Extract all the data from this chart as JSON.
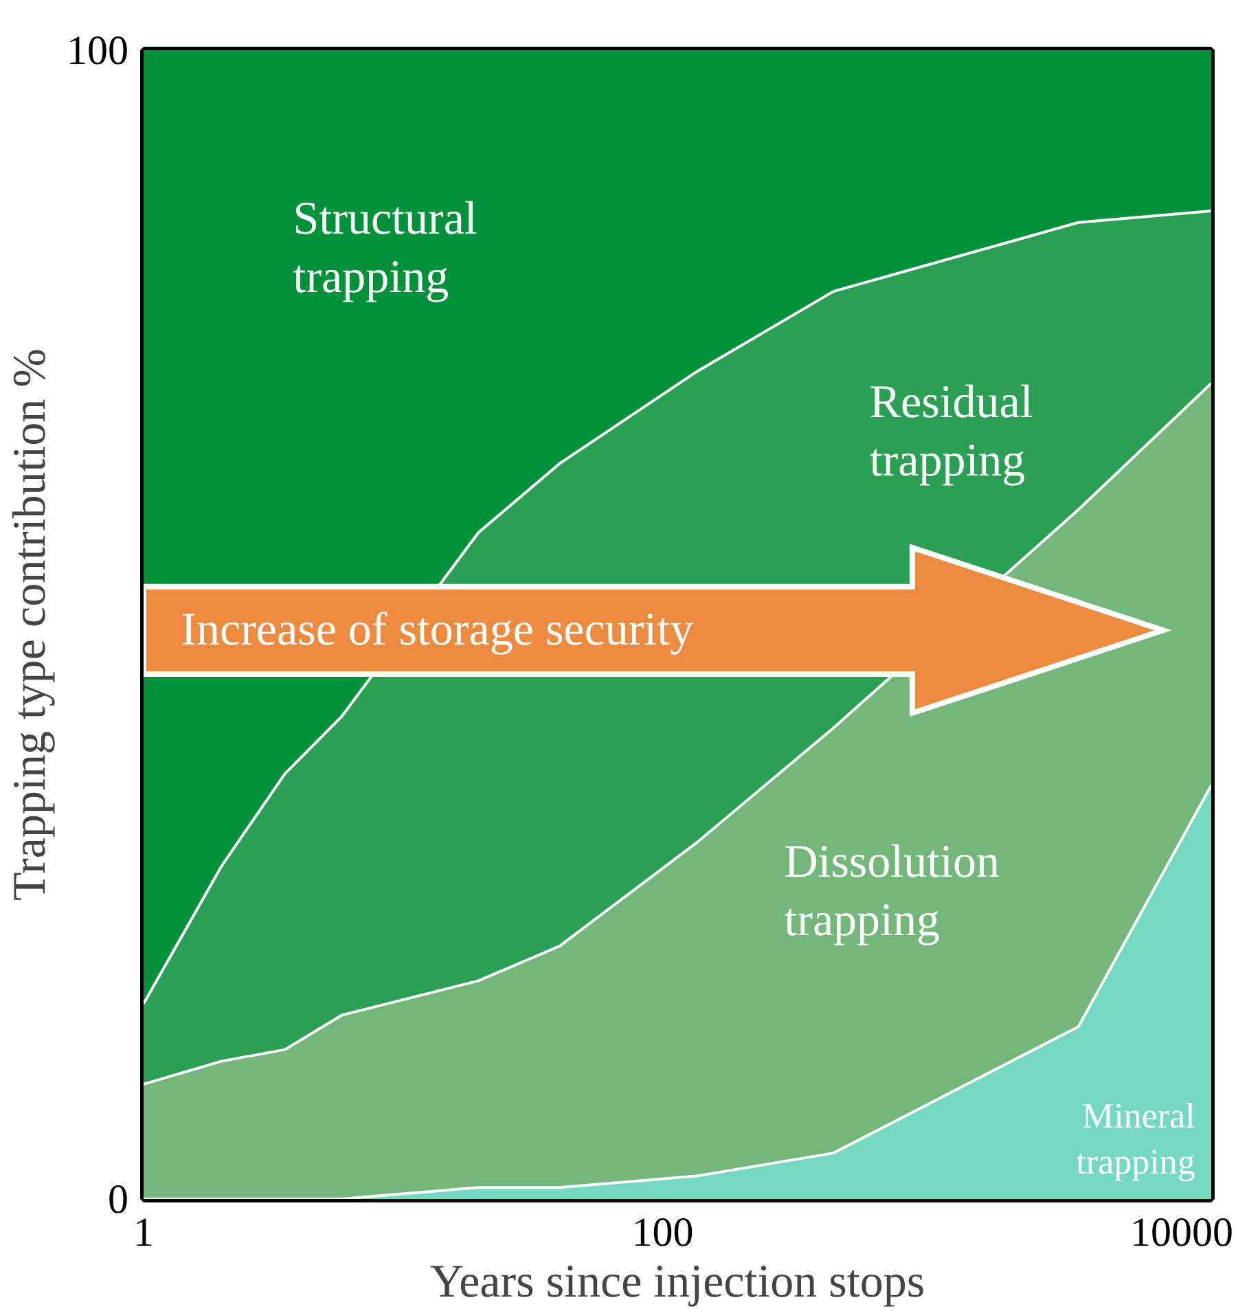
{
  "chart_data": {
    "type": "area",
    "stacked": true,
    "log": "x",
    "xlabel": "Years since injection stops",
    "ylabel": "Trapping type contribution %",
    "x": [
      1,
      2,
      3.5,
      5.8,
      19.5,
      40,
      135,
      455,
      4000,
      13000
    ],
    "xlim": [
      1,
      13000
    ],
    "xticks": [
      1,
      100,
      10000
    ],
    "ylim": [
      0,
      100
    ],
    "yticks": [
      0,
      100
    ],
    "series": [
      {
        "name": "Mineral trapping",
        "color": "#74d9c0",
        "values": [
          0,
          0,
          0,
          0,
          1,
          1,
          2,
          4,
          15,
          36
        ]
      },
      {
        "name": "Dissolution trapping",
        "color": "#74b77a",
        "values": [
          10,
          12,
          13,
          16,
          18,
          21,
          29,
          37,
          45,
          35
        ]
      },
      {
        "name": "Residual trapping",
        "color": "#2ba055",
        "values": [
          7,
          17,
          24,
          26,
          39,
          42,
          41,
          38,
          25,
          15
        ]
      },
      {
        "name": "Structural trapping",
        "color": "#00913a",
        "values": [
          83,
          71,
          63,
          58,
          42,
          36,
          28,
          21,
          15,
          14
        ]
      }
    ],
    "annotations": [
      "Increase of storage security"
    ]
  }
}
